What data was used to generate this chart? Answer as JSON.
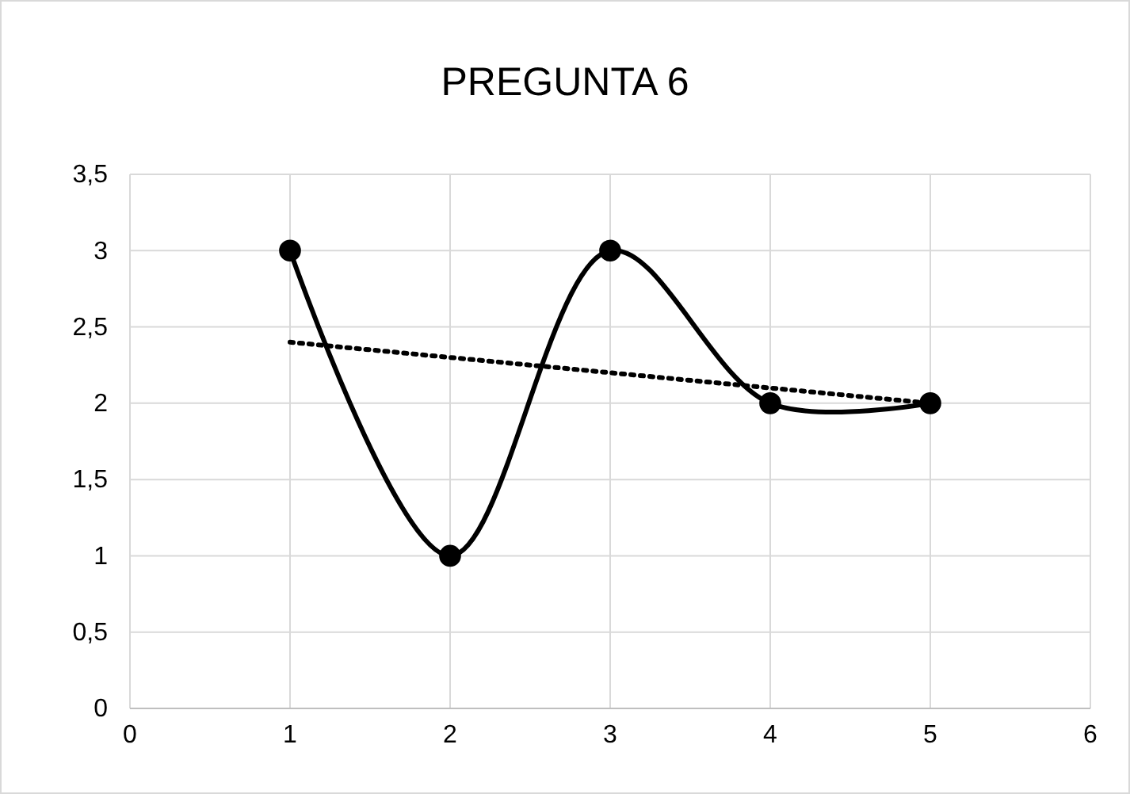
{
  "chart_data": {
    "type": "line",
    "title": "PREGUNTA 6",
    "xlim": [
      0,
      6
    ],
    "xticks": [
      0,
      1,
      2,
      3,
      4,
      5,
      6
    ],
    "ylim": [
      0,
      3.5
    ],
    "yticks": [
      0,
      {
        "value": 0.5,
        "label": "0,5"
      },
      1,
      {
        "value": 1.5,
        "label": "1,5"
      },
      2,
      {
        "value": 2.5,
        "label": "2,5"
      },
      3,
      {
        "value": 3.5,
        "label": "3,5"
      }
    ],
    "grid": true,
    "series": [
      {
        "type": "line",
        "x": [
          1,
          2,
          3,
          4,
          5
        ],
        "values": [
          3,
          1,
          3,
          2,
          2
        ],
        "color": "#000000",
        "marker": "circle",
        "line_style": "solid"
      },
      {
        "type": "line",
        "x": [
          1,
          5
        ],
        "values": [
          2.4,
          2.0
        ],
        "color": "#000000",
        "marker": "none",
        "line_style": "dotted"
      }
    ]
  }
}
